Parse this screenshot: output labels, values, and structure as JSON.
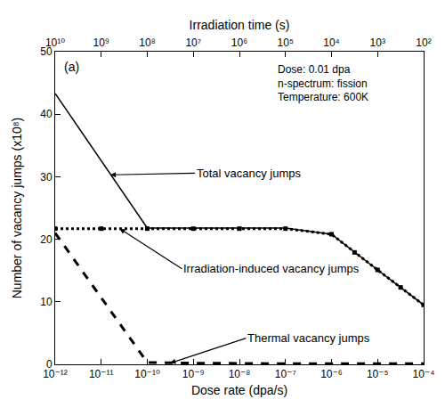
{
  "chart_data": {
    "type": "line",
    "x_label": "Dose rate (dpa/s)",
    "y_label": "Number of vacancy jumps (x10⁸)",
    "x2_label": "Irradiation time (s)",
    "log": "x",
    "grid": false,
    "x": [
      1e-12,
      1e-11,
      1e-10,
      1e-09,
      1e-08,
      1e-07,
      1e-06,
      3.16e-06,
      1e-05,
      3.16e-05,
      0.0001
    ],
    "series": [
      {
        "name": "Total vacancy jumps",
        "color": "#000000",
        "line_style": "solid",
        "values": [
          43.3,
          32.5,
          21.8,
          21.8,
          21.8,
          21.8,
          20.8,
          17.9,
          15.1,
          12.3,
          9.5
        ]
      },
      {
        "name": "Irradiation-induced vacancy jumps",
        "color": "#000000",
        "line_style": "dot",
        "marker": "square",
        "values": [
          21.7,
          21.7,
          21.7,
          21.7,
          21.7,
          21.7,
          20.8,
          17.9,
          15.1,
          12.3,
          9.5
        ]
      },
      {
        "name": "Thermal vacancy jumps",
        "color": "#000000",
        "line_style": "dash",
        "values": [
          21.0,
          10.6,
          0.3,
          0.2,
          0.1,
          0.1,
          0.1,
          0.1,
          0.1,
          0.1,
          0.1
        ]
      }
    ],
    "xlim": [
      1e-12,
      0.0001
    ],
    "xticks": [
      {
        "value": 1e-12,
        "label": "10⁻¹²"
      },
      {
        "value": 1e-11,
        "label": "10⁻¹¹"
      },
      {
        "value": 1e-10,
        "label": "10⁻¹⁰"
      },
      {
        "value": 1e-09,
        "label": "10⁻⁹"
      },
      {
        "value": 1e-08,
        "label": "10⁻⁸"
      },
      {
        "value": 1e-07,
        "label": "10⁻⁷"
      },
      {
        "value": 1e-06,
        "label": "10⁻⁶"
      },
      {
        "value": 1e-05,
        "label": "10⁻⁵"
      },
      {
        "value": 0.0001,
        "label": "10⁻⁴"
      }
    ],
    "x2lim": [
      10000000000.0,
      100.0
    ],
    "x2ticks": [
      {
        "value": 10000000000.0,
        "label": "10¹⁰"
      },
      {
        "value": 1000000000.0,
        "label": "10⁹"
      },
      {
        "value": 100000000.0,
        "label": "10⁸"
      },
      {
        "value": 10000000.0,
        "label": "10⁷"
      },
      {
        "value": 1000000.0,
        "label": "10⁶"
      },
      {
        "value": 100000.0,
        "label": "10⁵"
      },
      {
        "value": 10000.0,
        "label": "10⁴"
      },
      {
        "value": 1000.0,
        "label": "10³"
      },
      {
        "value": 100.0,
        "label": "10²"
      }
    ],
    "ylim": [
      0,
      50
    ],
    "yticks": [
      0,
      10,
      20,
      30,
      40,
      50
    ],
    "panel_label": "(a)",
    "notes": [
      "Dose: 0.01 dpa",
      "n-spectrum: fission",
      "Temperature: 600K"
    ],
    "annotations": [
      {
        "text": "Total vacancy jumps"
      },
      {
        "text": "Irradiation-induced vacancy jumps"
      },
      {
        "text": "Thermal vacancy jumps"
      }
    ]
  }
}
